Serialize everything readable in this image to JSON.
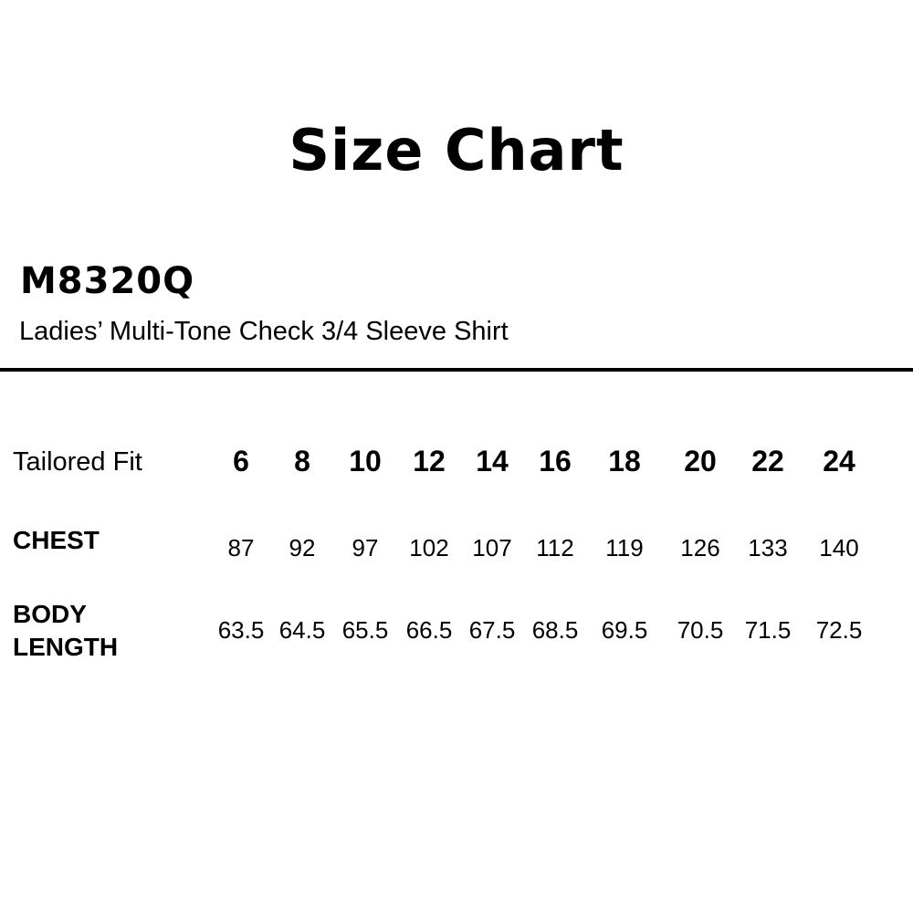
{
  "title": "Size Chart",
  "product_code": "M8320Q",
  "product_name": "Ladies’ Multi-Tone Check 3/4 Sleeve Shirt",
  "table": {
    "fit_label": "Tailored Fit",
    "sizes": [
      "6",
      "8",
      "10",
      "12",
      "14",
      "16",
      "18",
      "20",
      "22",
      "24"
    ],
    "rows": [
      {
        "label": "CHEST",
        "values": [
          "87",
          "92",
          "97",
          "102",
          "107",
          "112",
          "119",
          "126",
          "133",
          "140"
        ]
      },
      {
        "label_line1": "BODY",
        "label_line2": "LENGTH",
        "values": [
          "63.5",
          "64.5",
          "65.5",
          "66.5",
          "67.5",
          "68.5",
          "69.5",
          "70.5",
          "71.5",
          "72.5"
        ]
      }
    ]
  }
}
